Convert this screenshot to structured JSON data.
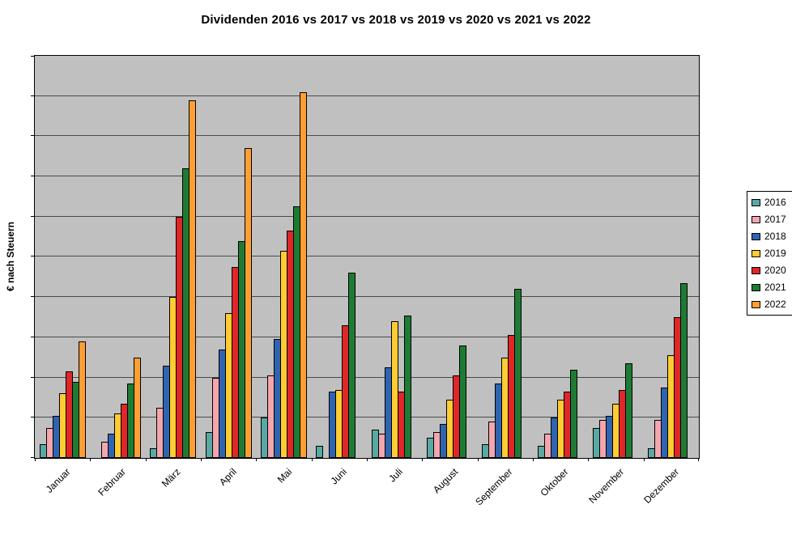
{
  "title": "Dividenden 2016 vs 2017 vs 2018 vs 2019 vs 2020 vs 2021 vs 2022",
  "y_axis": {
    "title": "€ nach Steuern"
  },
  "chart_data": {
    "type": "bar",
    "title": "Dividenden 2016 vs 2017 vs 2018 vs 2019 vs 2020 vs 2021 vs 2022",
    "xlabel": "",
    "ylabel": "€ nach Steuern",
    "categories": [
      "Januar",
      "Februar",
      "März",
      "April",
      "Mai",
      "Juni",
      "Juli",
      "August",
      "September",
      "Oktober",
      "November",
      "Dezember"
    ],
    "series": [
      {
        "name": "2016",
        "color": "#58A9A4",
        "values": [
          3.5,
          0,
          2.5,
          6.5,
          10,
          3,
          7,
          5,
          3.5,
          3,
          7.5,
          2.5
        ]
      },
      {
        "name": "2017",
        "color": "#F4A6AD",
        "values": [
          7.5,
          4,
          12.5,
          20,
          20.5,
          0,
          6,
          6.5,
          9,
          6,
          9.5,
          9.5
        ]
      },
      {
        "name": "2018",
        "color": "#2F64B1",
        "values": [
          10.5,
          6,
          23,
          27,
          29.5,
          16.5,
          22.5,
          8.5,
          18.5,
          10,
          10.5,
          17.5
        ]
      },
      {
        "name": "2019",
        "color": "#FFCC33",
        "values": [
          16,
          11,
          40,
          36,
          51.5,
          17,
          34,
          14.5,
          25,
          14.5,
          13.5,
          25.5
        ]
      },
      {
        "name": "2020",
        "color": "#E02727",
        "values": [
          21.5,
          13.5,
          60,
          47.5,
          56.5,
          33,
          16.5,
          20.5,
          30.5,
          16.5,
          17,
          35
        ]
      },
      {
        "name": "2021",
        "color": "#1E7B34",
        "values": [
          19,
          18.5,
          72,
          54,
          62.5,
          46,
          35.5,
          28,
          42,
          22,
          23.5,
          43.5
        ]
      },
      {
        "name": "2022",
        "color": "#FF9F33",
        "values": [
          29,
          25,
          89,
          77,
          91,
          0,
          0,
          0,
          0,
          0,
          0,
          0
        ]
      }
    ],
    "ylim": [
      0,
      100
    ],
    "y_tick_labels_visible": false,
    "gridline_divisions": 10,
    "grid": true,
    "legend_position": "right",
    "plot_background": "#C0C0C0"
  }
}
